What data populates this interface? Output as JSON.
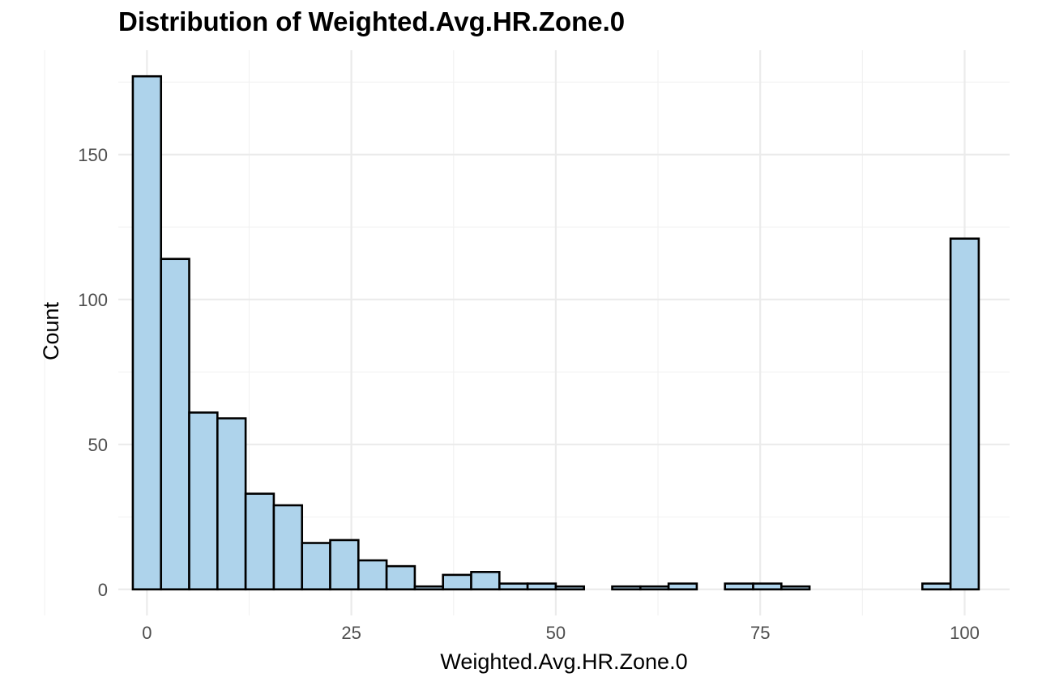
{
  "chart_data": {
    "type": "bar",
    "subtype": "histogram",
    "title": "Distribution of Weighted.Avg.HR.Zone.0",
    "xlabel": "Weighted.Avg.HR.Zone.0",
    "ylabel": "Count",
    "xlim": [
      -3.5,
      105.5
    ],
    "ylim": [
      -9,
      186
    ],
    "x_ticks": [
      0,
      25,
      50,
      75,
      100
    ],
    "y_ticks": [
      0,
      50,
      100,
      150
    ],
    "x_minor_ticks": [
      -12.5,
      12.5,
      37.5,
      62.5,
      87.5
    ],
    "y_minor_ticks": [
      25,
      75,
      125,
      175
    ],
    "grid": true,
    "bin_width": 3.448,
    "bins": [
      {
        "start": -1.724,
        "end": 1.724,
        "count": 177
      },
      {
        "start": 1.724,
        "end": 5.172,
        "count": 114
      },
      {
        "start": 5.172,
        "end": 8.621,
        "count": 61
      },
      {
        "start": 8.621,
        "end": 12.069,
        "count": 59
      },
      {
        "start": 12.069,
        "end": 15.517,
        "count": 33
      },
      {
        "start": 15.517,
        "end": 18.966,
        "count": 29
      },
      {
        "start": 18.966,
        "end": 22.414,
        "count": 16
      },
      {
        "start": 22.414,
        "end": 25.862,
        "count": 17
      },
      {
        "start": 25.862,
        "end": 29.31,
        "count": 10
      },
      {
        "start": 29.31,
        "end": 32.759,
        "count": 8
      },
      {
        "start": 32.759,
        "end": 36.207,
        "count": 1
      },
      {
        "start": 36.207,
        "end": 39.655,
        "count": 5
      },
      {
        "start": 39.655,
        "end": 43.103,
        "count": 6
      },
      {
        "start": 43.103,
        "end": 46.552,
        "count": 2
      },
      {
        "start": 46.552,
        "end": 50.0,
        "count": 2
      },
      {
        "start": 50.0,
        "end": 53.448,
        "count": 1
      },
      {
        "start": 53.448,
        "end": 56.897,
        "count": 0
      },
      {
        "start": 56.897,
        "end": 60.345,
        "count": 1
      },
      {
        "start": 60.345,
        "end": 63.793,
        "count": 1
      },
      {
        "start": 63.793,
        "end": 67.241,
        "count": 2
      },
      {
        "start": 67.241,
        "end": 70.69,
        "count": 0
      },
      {
        "start": 70.69,
        "end": 74.138,
        "count": 2
      },
      {
        "start": 74.138,
        "end": 77.586,
        "count": 2
      },
      {
        "start": 77.586,
        "end": 81.034,
        "count": 1
      },
      {
        "start": 81.034,
        "end": 84.483,
        "count": 0
      },
      {
        "start": 84.483,
        "end": 87.931,
        "count": 0
      },
      {
        "start": 87.931,
        "end": 91.379,
        "count": 0
      },
      {
        "start": 91.379,
        "end": 94.828,
        "count": 0
      },
      {
        "start": 94.828,
        "end": 98.276,
        "count": 2
      },
      {
        "start": 98.276,
        "end": 101.724,
        "count": 121
      }
    ]
  },
  "colors": {
    "bar_fill": "#aed3eb",
    "bar_outline": "#000000",
    "background": "#ffffff",
    "grid_major": "#ebebeb",
    "grid_minor": "#f2f2f2",
    "tick_text": "#4d4d4d"
  }
}
